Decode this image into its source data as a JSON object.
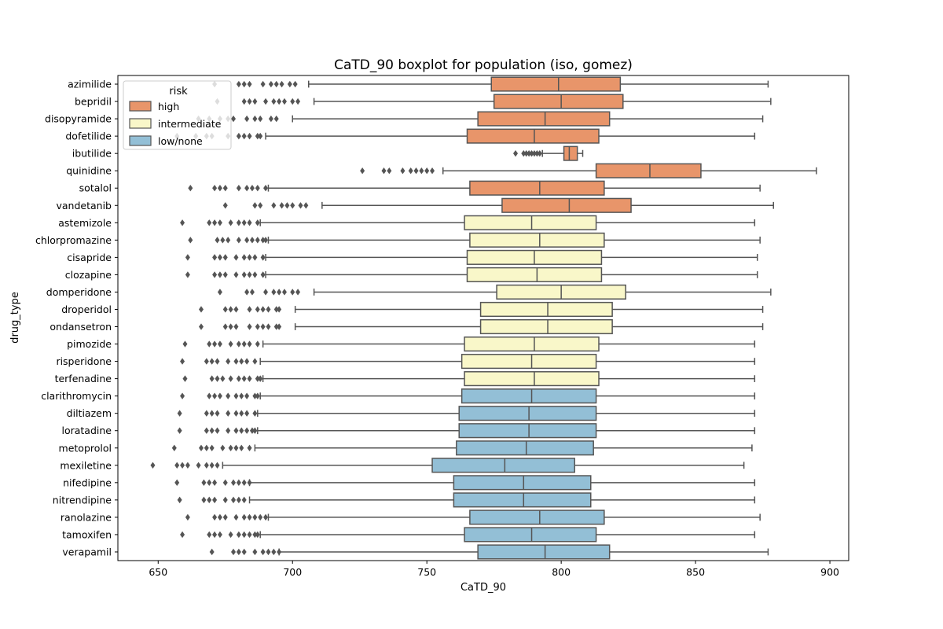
{
  "chart_data": {
    "type": "boxplot",
    "title": "CaTD_90 boxplot for population (iso, gomez)",
    "xlabel": "CaTD_90",
    "ylabel": "drug_type",
    "xlim": [
      635,
      907
    ],
    "xticks": [
      650,
      700,
      750,
      800,
      850,
      900
    ],
    "orientation": "horizontal",
    "grid": false,
    "legend": {
      "title": "risk",
      "placement": "top-left",
      "entries": [
        {
          "label": "high",
          "color": "#e8956a"
        },
        {
          "label": "intermediate",
          "color": "#f9f7c9"
        },
        {
          "label": "low/none",
          "color": "#93bfd6"
        }
      ]
    },
    "colors": {
      "high": "#e8956a",
      "intermediate": "#f9f7c9",
      "low/none": "#93bfd6",
      "edge": "#555555"
    },
    "boxes": [
      {
        "drug": "azimilide",
        "risk": "high",
        "whisker_low": 706,
        "q1": 774,
        "median": 799,
        "q3": 822,
        "whisker_high": 877,
        "outliers": [
          671,
          680,
          682,
          684,
          689,
          692,
          694,
          696,
          699,
          701
        ]
      },
      {
        "drug": "bepridil",
        "risk": "high",
        "whisker_low": 708,
        "q1": 775,
        "median": 800,
        "q3": 823,
        "whisker_high": 878,
        "outliers": [
          672,
          682,
          684,
          686,
          690,
          693,
          695,
          697,
          700,
          702
        ]
      },
      {
        "drug": "disopyramide",
        "risk": "high",
        "whisker_low": 700,
        "q1": 769,
        "median": 794,
        "q3": 818,
        "whisker_high": 875,
        "outliers": [
          665,
          669,
          673,
          676,
          678,
          683,
          686,
          688,
          692,
          694
        ]
      },
      {
        "drug": "dofetilide",
        "risk": "high",
        "whisker_low": 690,
        "q1": 765,
        "median": 790,
        "q3": 814,
        "whisker_high": 872,
        "outliers": [
          657,
          664,
          668,
          670,
          676,
          680,
          682,
          684,
          687,
          688
        ]
      },
      {
        "drug": "ibutilide",
        "risk": "high",
        "whisker_low": 793,
        "q1": 801,
        "median": 803,
        "q3": 806,
        "whisker_high": 808,
        "outliers": [
          783,
          786,
          787,
          788,
          789,
          790,
          791,
          792
        ]
      },
      {
        "drug": "quinidine",
        "risk": "high",
        "whisker_low": 756,
        "q1": 813,
        "median": 833,
        "q3": 852,
        "whisker_high": 895,
        "outliers": [
          726,
          734,
          736,
          741,
          744,
          746,
          748,
          750,
          752
        ]
      },
      {
        "drug": "sotalol",
        "risk": "high",
        "whisker_low": 691,
        "q1": 766,
        "median": 792,
        "q3": 816,
        "whisker_high": 874,
        "outliers": [
          662,
          671,
          673,
          675,
          680,
          683,
          685,
          687,
          690
        ]
      },
      {
        "drug": "vandetanib",
        "risk": "high",
        "whisker_low": 711,
        "q1": 778,
        "median": 803,
        "q3": 826,
        "whisker_high": 879,
        "outliers": [
          675,
          686,
          688,
          693,
          696,
          698,
          700,
          703,
          705
        ]
      },
      {
        "drug": "astemizole",
        "risk": "intermediate",
        "whisker_low": 688,
        "q1": 764,
        "median": 789,
        "q3": 813,
        "whisker_high": 872,
        "outliers": [
          659,
          669,
          671,
          673,
          677,
          680,
          682,
          684,
          687
        ]
      },
      {
        "drug": "chlorpromazine",
        "risk": "intermediate",
        "whisker_low": 691,
        "q1": 766,
        "median": 792,
        "q3": 816,
        "whisker_high": 874,
        "outliers": [
          662,
          672,
          674,
          676,
          680,
          683,
          685,
          687,
          689,
          690
        ]
      },
      {
        "drug": "cisapride",
        "risk": "intermediate",
        "whisker_low": 690,
        "q1": 765,
        "median": 790,
        "q3": 815,
        "whisker_high": 873,
        "outliers": [
          661,
          671,
          673,
          675,
          679,
          682,
          684,
          686,
          689
        ]
      },
      {
        "drug": "clozapine",
        "risk": "intermediate",
        "whisker_low": 690,
        "q1": 765,
        "median": 791,
        "q3": 815,
        "whisker_high": 873,
        "outliers": [
          661,
          671,
          673,
          675,
          679,
          682,
          684,
          686,
          689
        ]
      },
      {
        "drug": "domperidone",
        "risk": "intermediate",
        "whisker_low": 708,
        "q1": 776,
        "median": 800,
        "q3": 824,
        "whisker_high": 878,
        "outliers": [
          673,
          683,
          685,
          690,
          693,
          695,
          697,
          700,
          702
        ]
      },
      {
        "drug": "droperidol",
        "risk": "intermediate",
        "whisker_low": 701,
        "q1": 770,
        "median": 795,
        "q3": 819,
        "whisker_high": 875,
        "outliers": [
          666,
          675,
          677,
          679,
          684,
          687,
          689,
          691,
          694,
          695
        ]
      },
      {
        "drug": "ondansetron",
        "risk": "intermediate",
        "whisker_low": 701,
        "q1": 770,
        "median": 795,
        "q3": 819,
        "whisker_high": 875,
        "outliers": [
          666,
          675,
          677,
          679,
          684,
          687,
          689,
          691,
          694,
          695
        ]
      },
      {
        "drug": "pimozide",
        "risk": "intermediate",
        "whisker_low": 689,
        "q1": 764,
        "median": 790,
        "q3": 814,
        "whisker_high": 872,
        "outliers": [
          660,
          669,
          671,
          673,
          677,
          680,
          682,
          684,
          687
        ]
      },
      {
        "drug": "risperidone",
        "risk": "intermediate",
        "whisker_low": 688,
        "q1": 763,
        "median": 789,
        "q3": 813,
        "whisker_high": 872,
        "outliers": [
          659,
          668,
          670,
          672,
          676,
          679,
          681,
          683,
          686
        ]
      },
      {
        "drug": "terfenadine",
        "risk": "intermediate",
        "whisker_low": 689,
        "q1": 764,
        "median": 790,
        "q3": 814,
        "whisker_high": 872,
        "outliers": [
          660,
          670,
          672,
          674,
          677,
          680,
          682,
          684,
          687,
          688
        ]
      },
      {
        "drug": "clarithromycin",
        "risk": "low/none",
        "whisker_low": 688,
        "q1": 763,
        "median": 789,
        "q3": 813,
        "whisker_high": 872,
        "outliers": [
          659,
          669,
          671,
          673,
          676,
          679,
          681,
          683,
          686,
          687
        ]
      },
      {
        "drug": "diltiazem",
        "risk": "low/none",
        "whisker_low": 687,
        "q1": 762,
        "median": 788,
        "q3": 813,
        "whisker_high": 872,
        "outliers": [
          658,
          668,
          670,
          672,
          676,
          679,
          681,
          683,
          686
        ]
      },
      {
        "drug": "loratadine",
        "risk": "low/none",
        "whisker_low": 687,
        "q1": 762,
        "median": 788,
        "q3": 813,
        "whisker_high": 872,
        "outliers": [
          658,
          668,
          670,
          672,
          676,
          679,
          681,
          683,
          685,
          686
        ]
      },
      {
        "drug": "metoprolol",
        "risk": "low/none",
        "whisker_low": 686,
        "q1": 761,
        "median": 787,
        "q3": 812,
        "whisker_high": 871,
        "outliers": [
          656,
          666,
          668,
          670,
          674,
          677,
          679,
          681,
          684
        ]
      },
      {
        "drug": "mexiletine",
        "risk": "low/none",
        "whisker_low": 674,
        "q1": 752,
        "median": 779,
        "q3": 805,
        "whisker_high": 868,
        "outliers": [
          648,
          657,
          659,
          661,
          665,
          668,
          670,
          672
        ]
      },
      {
        "drug": "nifedipine",
        "risk": "low/none",
        "whisker_low": 684,
        "q1": 760,
        "median": 786,
        "q3": 811,
        "whisker_high": 872,
        "outliers": [
          657,
          667,
          669,
          671,
          675,
          678,
          680,
          682,
          684
        ]
      },
      {
        "drug": "nitrendipine",
        "risk": "low/none",
        "whisker_low": 684,
        "q1": 760,
        "median": 786,
        "q3": 811,
        "whisker_high": 872,
        "outliers": [
          658,
          667,
          669,
          671,
          675,
          678,
          680,
          682
        ]
      },
      {
        "drug": "ranolazine",
        "risk": "low/none",
        "whisker_low": 691,
        "q1": 766,
        "median": 792,
        "q3": 816,
        "whisker_high": 874,
        "outliers": [
          661,
          671,
          673,
          675,
          679,
          682,
          684,
          686,
          688,
          690
        ]
      },
      {
        "drug": "tamoxifen",
        "risk": "low/none",
        "whisker_low": 688,
        "q1": 764,
        "median": 789,
        "q3": 813,
        "whisker_high": 872,
        "outliers": [
          659,
          669,
          671,
          673,
          677,
          680,
          682,
          684,
          686,
          687
        ]
      },
      {
        "drug": "verapamil",
        "risk": "low/none",
        "whisker_low": 695,
        "q1": 769,
        "median": 794,
        "q3": 818,
        "whisker_high": 877,
        "outliers": [
          670,
          678,
          680,
          682,
          686,
          689,
          691,
          693,
          695
        ]
      }
    ]
  }
}
